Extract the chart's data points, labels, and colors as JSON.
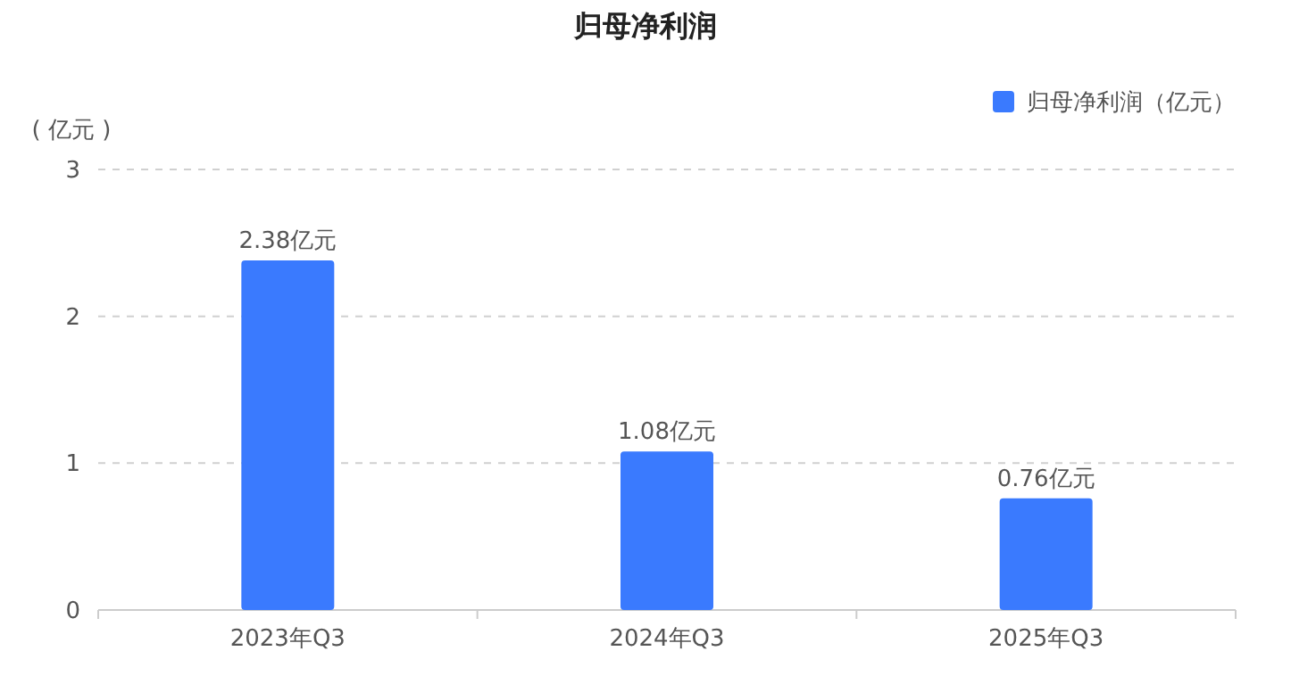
{
  "chart_data": {
    "type": "bar",
    "title": "归母净利润",
    "ylabel": "( 亿元 )",
    "categories": [
      "2023年Q3",
      "2024年Q3",
      "2025年Q3"
    ],
    "series": [
      {
        "name": "归母净利润（亿元）",
        "color": "#3a7afe",
        "values": [
          2.38,
          1.08,
          0.76
        ],
        "value_labels": [
          "2.38亿元",
          "1.08亿元",
          "0.76亿元"
        ]
      }
    ],
    "ylim": [
      0,
      3
    ],
    "yticks": [
      0,
      1,
      2,
      3
    ],
    "grid": "y",
    "legend": "top right"
  }
}
